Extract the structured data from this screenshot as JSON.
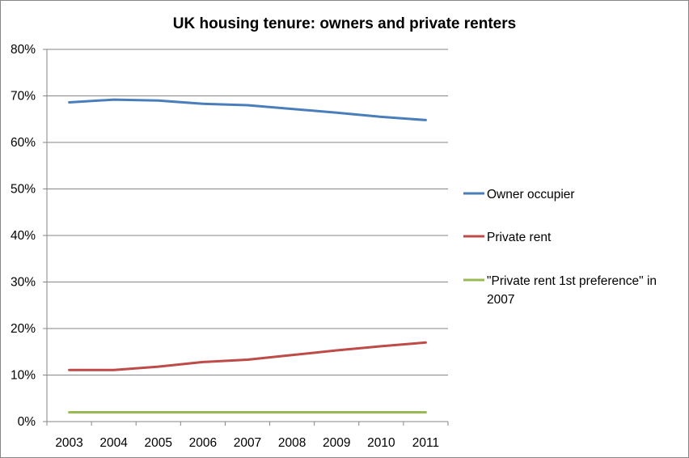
{
  "chart_data": {
    "type": "line",
    "title": "UK housing tenure: owners and private renters",
    "xlabel": "",
    "ylabel": "",
    "x": [
      "2003",
      "2004",
      "2005",
      "2006",
      "2007",
      "2008",
      "2009",
      "2010",
      "2011"
    ],
    "ylim": [
      0,
      0.8
    ],
    "y_ticks": [
      0,
      0.1,
      0.2,
      0.3,
      0.4,
      0.5,
      0.6,
      0.7,
      0.8
    ],
    "y_tick_labels": [
      "0%",
      "10%",
      "20%",
      "30%",
      "40%",
      "50%",
      "60%",
      "70%",
      "80%"
    ],
    "grid": true,
    "legend_position": "right",
    "series": [
      {
        "name": "Owner occupier",
        "color": "#4a7ebb",
        "values": [
          0.686,
          0.692,
          0.69,
          0.683,
          0.68,
          0.672,
          0.664,
          0.655,
          0.648
        ]
      },
      {
        "name": "Private rent",
        "color": "#be4b48",
        "values": [
          0.111,
          0.111,
          0.118,
          0.128,
          0.133,
          0.143,
          0.153,
          0.162,
          0.17
        ]
      },
      {
        "name": "\"Private rent 1st preference\" in 2007",
        "legend_lines": [
          "\"Private rent 1st preference\" in",
          "2007"
        ],
        "color": "#98b954",
        "values": [
          0.02,
          0.02,
          0.02,
          0.02,
          0.02,
          0.02,
          0.02,
          0.02,
          0.02
        ]
      }
    ]
  }
}
